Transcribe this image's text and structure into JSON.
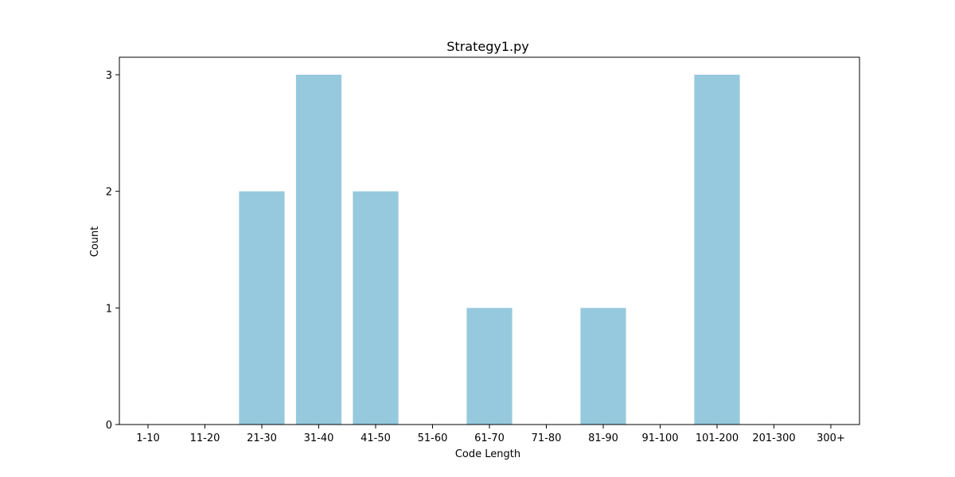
{
  "chart_data": {
    "type": "bar",
    "title": "Strategy1.py",
    "xlabel": "Code Length",
    "ylabel": "Count",
    "categories": [
      "1-10",
      "11-20",
      "21-30",
      "31-40",
      "41-50",
      "51-60",
      "61-70",
      "71-80",
      "81-90",
      "91-100",
      "101-200",
      "201-300",
      "300+"
    ],
    "values": [
      0,
      0,
      2,
      3,
      2,
      0,
      1,
      0,
      1,
      0,
      3,
      0,
      0
    ],
    "ylim": [
      0,
      3.15
    ],
    "yticks": [
      0,
      1,
      2,
      3
    ],
    "grid": false,
    "bar_color": "#96c9dd"
  }
}
